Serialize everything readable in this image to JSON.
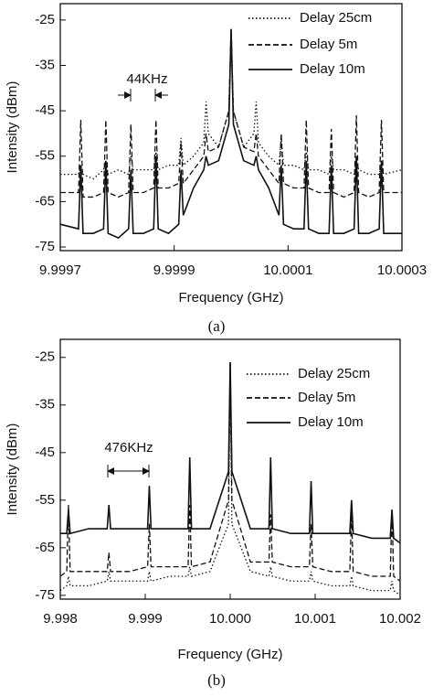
{
  "chart_data": [
    {
      "type": "line",
      "caption": "(a)",
      "x_label": "Frequency (GHz)",
      "y_label": "Intensity (dBm)",
      "annotation": "44KHz",
      "xlim": [
        9.9997,
        10.0003
      ],
      "xticks": [
        9.9997,
        9.9999,
        10.0001,
        10.0003
      ],
      "ylim": [
        -75.8,
        -21.4
      ],
      "yticks": [
        -25,
        -35,
        -45,
        -55,
        -65,
        -75
      ],
      "x": [
        9.9997,
        9.999732,
        9.999736,
        9.99974,
        9.999758,
        9.999776,
        9.99978,
        9.999784,
        9.999802,
        9.99982,
        9.999824,
        9.999828,
        9.999846,
        9.999864,
        9.999868,
        9.999872,
        9.99989,
        9.999908,
        9.999912,
        9.999916,
        9.999934,
        9.999952,
        9.999956,
        9.99996,
        9.999978,
        9.999996,
        10,
        10.000004,
        10.000022,
        10.00004,
        10.000044,
        10.000048,
        10.000066,
        10.000084,
        10.000088,
        10.000092,
        10.00011,
        10.000128,
        10.000132,
        10.000136,
        10.000154,
        10.000172,
        10.000176,
        10.00018,
        10.000198,
        10.000216,
        10.00022,
        10.000224,
        10.000242,
        10.00026,
        10.000264,
        10.000268,
        10.0003
      ],
      "series": [
        {
          "name": "Delay 25cm",
          "color": "#111111",
          "style": "dotted",
          "values": [
            -59,
            -59,
            -57,
            -59,
            -60,
            -58,
            -56,
            -59,
            -58,
            -59,
            -55,
            -58,
            -58,
            -58,
            -54,
            -58,
            -57,
            -57,
            -51,
            -57,
            -55,
            -52,
            -43,
            -50,
            -53,
            -45,
            -27,
            -45,
            -53,
            -50,
            -43,
            -52,
            -55,
            -57,
            -51,
            -57,
            -57,
            -58,
            -54,
            -58,
            -58,
            -59,
            -55,
            -58,
            -58,
            -59,
            -56,
            -58,
            -59,
            -59,
            -57,
            -59,
            -58
          ]
        },
        {
          "name": "Delay 5m",
          "color": "#111111",
          "style": "dashed",
          "values": [
            -63,
            -63,
            -47,
            -64,
            -64,
            -63,
            -47,
            -63,
            -64,
            -63,
            -48,
            -63,
            -63,
            -62,
            -47,
            -62,
            -62,
            -61,
            -52,
            -61,
            -58,
            -55,
            -50,
            -54,
            -53,
            -45,
            -27,
            -45,
            -53,
            -54,
            -50,
            -55,
            -58,
            -61,
            -50,
            -61,
            -62,
            -62,
            -47,
            -62,
            -63,
            -63,
            -49,
            -63,
            -64,
            -63,
            -46,
            -63,
            -64,
            -63,
            -47,
            -63,
            -63
          ]
        },
        {
          "name": "Delay 10m",
          "color": "#111111",
          "style": "solid",
          "values": [
            -70,
            -71,
            -57,
            -72,
            -72,
            -71,
            -56,
            -72,
            -73,
            -71,
            -58,
            -72,
            -72,
            -71,
            -55,
            -71,
            -72,
            -70,
            -58,
            -68,
            -62,
            -58,
            -55,
            -57,
            -56,
            -48,
            -27,
            -48,
            -56,
            -57,
            -55,
            -58,
            -62,
            -68,
            -57,
            -70,
            -71,
            -71,
            -56,
            -71,
            -72,
            -72,
            -57,
            -72,
            -72,
            -71,
            -55,
            -72,
            -72,
            -71,
            -56,
            -72,
            -72
          ]
        }
      ]
    },
    {
      "type": "line",
      "caption": "(b)",
      "x_label": "Frequency (GHz)",
      "y_label": "Intensity (dBm)",
      "annotation": "476KHz",
      "xlim": [
        9.998,
        10.002
      ],
      "xticks": [
        9.998,
        9.999,
        {
          "value": 10,
          "label": "10.000"
        },
        10.001,
        10.002
      ],
      "ylim": [
        -75.8,
        -21.2
      ],
      "yticks": [
        -25,
        -35,
        -45,
        -55,
        -65,
        -75
      ],
      "x": [
        9.998,
        9.998076,
        9.998096,
        9.998116,
        9.998334,
        9.998552,
        9.998572,
        9.998592,
        9.99881,
        9.999028,
        9.999048,
        9.999068,
        9.999286,
        9.999504,
        9.999524,
        9.999544,
        9.999762,
        9.99998,
        10,
        10.00002,
        10.000238,
        10.000456,
        10.000476,
        10.000496,
        10.000714,
        10.000932,
        10.000952,
        10.000972,
        10.00119,
        10.001408,
        10.001428,
        10.001448,
        10.001666,
        10.001884,
        10.001904,
        10.001924,
        10.002
      ],
      "series": [
        {
          "name": "Delay 25cm",
          "color": "#111111",
          "style": "dotted",
          "values": [
            -74,
            -73,
            -71,
            -73,
            -73,
            -72,
            -70,
            -72,
            -72,
            -72,
            -70,
            -72,
            -71,
            -71,
            -69,
            -71,
            -70,
            -60,
            -26,
            -60,
            -70,
            -71,
            -69,
            -71,
            -72,
            -72,
            -70,
            -72,
            -73,
            -73,
            -71,
            -73,
            -74,
            -74,
            -72,
            -74,
            -75
          ]
        },
        {
          "name": "Delay 5m",
          "color": "#111111",
          "style": "dashed",
          "values": [
            -71,
            -70,
            -56,
            -70,
            -70,
            -70,
            -66,
            -70,
            -70,
            -69,
            -60,
            -69,
            -69,
            -69,
            -56,
            -69,
            -68,
            -55,
            -26,
            -55,
            -68,
            -68,
            -58,
            -68,
            -69,
            -69,
            -60,
            -69,
            -70,
            -70,
            -58,
            -70,
            -71,
            -71,
            -57,
            -71,
            -72
          ]
        },
        {
          "name": "Delay 10m",
          "color": "#111111",
          "style": "solid",
          "values": [
            -62,
            -62,
            -57,
            -62,
            -61,
            -61,
            -56,
            -61,
            -61,
            -61,
            -52,
            -61,
            -61,
            -61,
            -46,
            -61,
            -61,
            -49,
            -26,
            -49,
            -61,
            -61,
            -46,
            -61,
            -62,
            -62,
            -51,
            -62,
            -62,
            -62,
            -55,
            -62,
            -63,
            -63,
            -57,
            -63,
            -64
          ]
        }
      ]
    }
  ]
}
